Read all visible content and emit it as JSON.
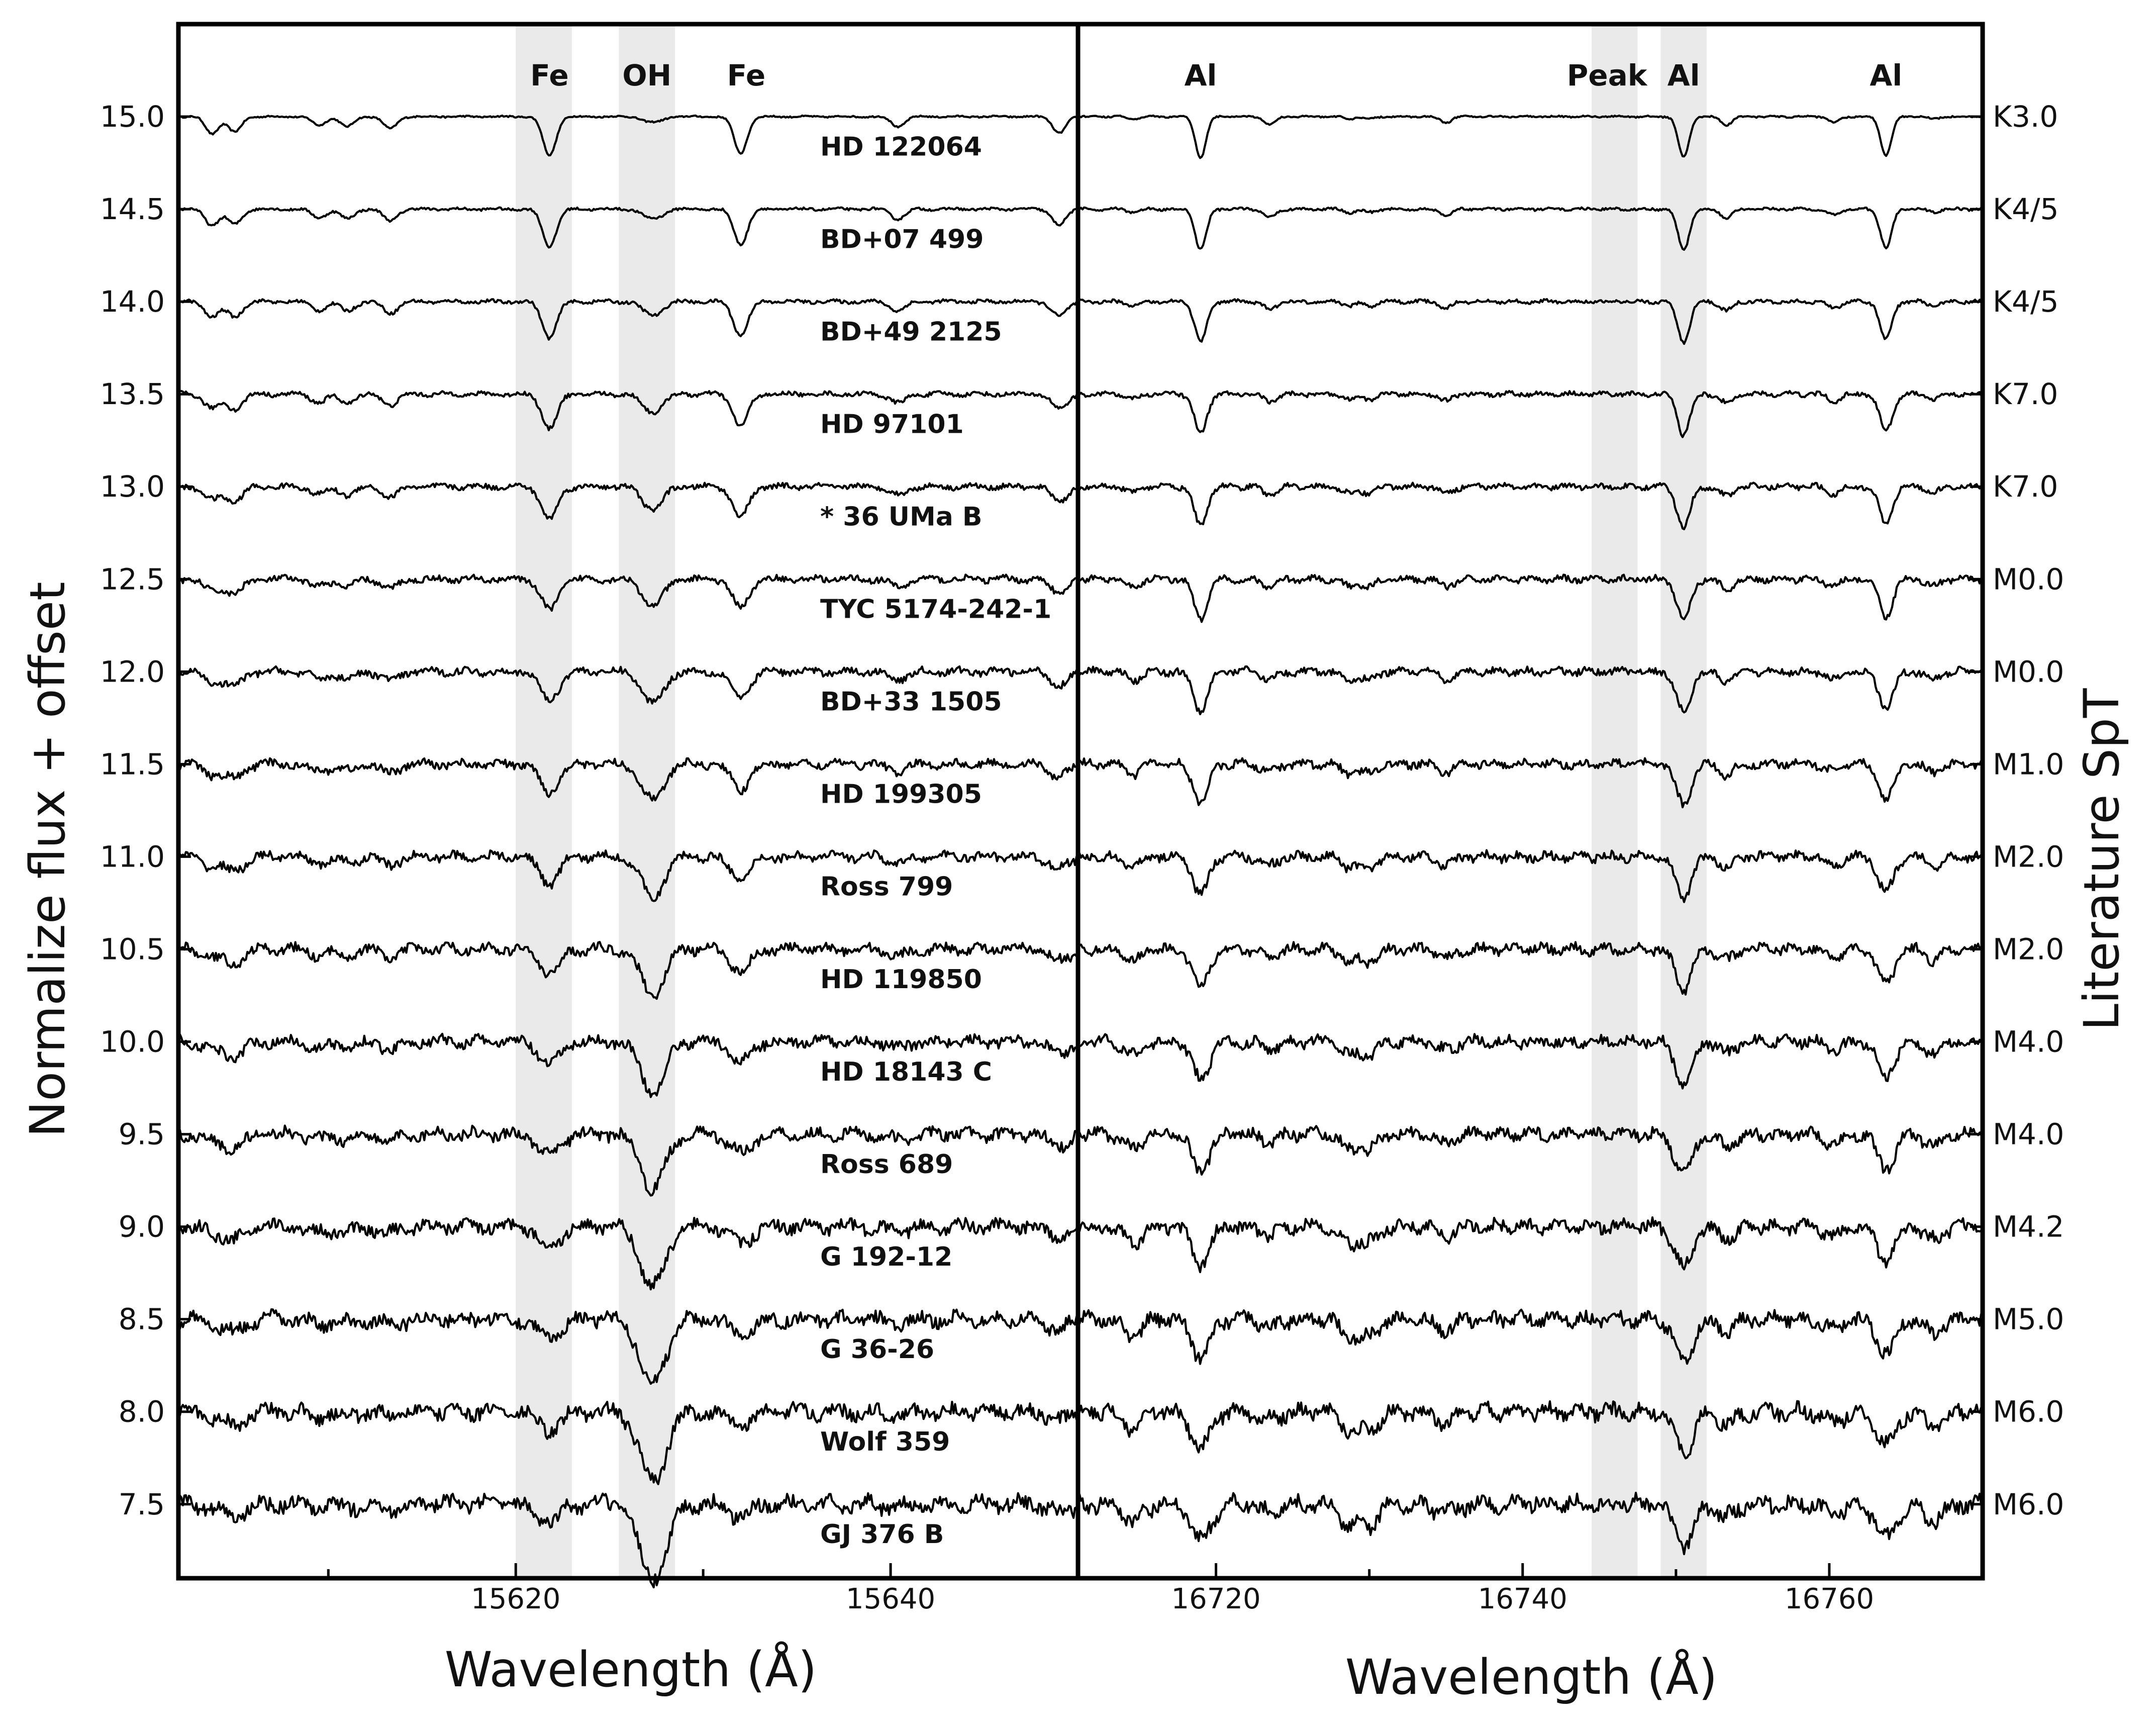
{
  "chart_data": [
    {
      "type": "line",
      "panel": "left",
      "xlabel": "Wavelength (Å)",
      "ylabel": "Normalize flux + offset",
      "xlim": [
        15602,
        15650
      ],
      "ylim": [
        7.1,
        15.5
      ],
      "xticks": [
        15620,
        15640
      ],
      "xtick_labels": [
        "15620",
        "15640"
      ],
      "yticks": [
        7.5,
        8.0,
        8.5,
        9.0,
        9.5,
        10.0,
        10.5,
        11.0,
        11.5,
        12.0,
        12.5,
        13.0,
        13.5,
        14.0,
        14.5,
        15.0
      ],
      "ytick_labels": [
        "7.5",
        "8.0",
        "8.5",
        "9.0",
        "9.5",
        "10.0",
        "10.5",
        "11.0",
        "11.5",
        "12.0",
        "12.5",
        "13.0",
        "13.5",
        "14.0",
        "14.5",
        "15.0"
      ],
      "shaded_regions": [
        {
          "label": "Fe",
          "x": [
            15620.0,
            15623.0
          ],
          "label_x": 15621.8
        },
        {
          "label": "OH",
          "x": [
            15625.5,
            15628.5
          ],
          "label_x": 15627.0
        },
        {
          "label": "Fe",
          "x": null,
          "label_x": 15632.3
        }
      ],
      "absorption_lines_angstrom": [
        15603.8,
        15605.0,
        15609.5,
        15611.0,
        15613.3,
        15621.8,
        15627.0,
        15627.6,
        15632.0,
        15640.4,
        15649.0
      ]
    },
    {
      "type": "line",
      "panel": "right",
      "xlabel": "Wavelength (Å)",
      "ylabel": "Literature SpT",
      "xlim": [
        16711,
        16770
      ],
      "ylim": [
        7.1,
        15.5
      ],
      "xticks": [
        16720,
        16740,
        16760
      ],
      "xtick_labels": [
        "16720",
        "16740",
        "16760"
      ],
      "shaded_regions": [
        {
          "label": "Peak",
          "x": [
            16744.5,
            16747.5
          ],
          "label_x": 16745.5
        },
        {
          "label": "Al",
          "x": [
            16749.0,
            16752.0
          ],
          "label_x": 16750.5
        },
        {
          "label": "Al",
          "x": null,
          "label_x": 16719.0
        },
        {
          "label": "Al",
          "x": null,
          "label_x": 16763.7
        }
      ],
      "absorption_lines_angstrom": [
        16714.6,
        16719.0,
        16723.5,
        16728.7,
        16730.0,
        16735.0,
        16750.5,
        16753.3,
        16760.3,
        16763.7,
        16766.8
      ]
    }
  ],
  "spectra": [
    {
      "name": "HD 122064",
      "spt": "K3.0",
      "offset": 15.0
    },
    {
      "name": "BD+07 499",
      "spt": "K4/5",
      "offset": 14.5
    },
    {
      "name": "BD+49 2125",
      "spt": "K4/5",
      "offset": 14.0
    },
    {
      "name": "HD 97101",
      "spt": "K7.0",
      "offset": 13.5
    },
    {
      "name": "* 36 UMa B",
      "spt": "K7.0",
      "offset": 13.0
    },
    {
      "name": "TYC 5174-242-1",
      "spt": "M0.0",
      "offset": 12.5
    },
    {
      "name": "BD+33 1505",
      "spt": "M0.0",
      "offset": 12.0
    },
    {
      "name": "HD 199305",
      "spt": "M1.0",
      "offset": 11.5
    },
    {
      "name": "Ross 799",
      "spt": "M2.0",
      "offset": 11.0
    },
    {
      "name": "HD 119850",
      "spt": "M2.0",
      "offset": 10.5
    },
    {
      "name": "HD 18143 C",
      "spt": "M4.0",
      "offset": 10.0
    },
    {
      "name": "Ross 689",
      "spt": "M4.0",
      "offset": 9.5
    },
    {
      "name": "G 192-12",
      "spt": "M4.2",
      "offset": 9.0
    },
    {
      "name": "G 36-26",
      "spt": "M5.0",
      "offset": 8.5
    },
    {
      "name": "Wolf 359",
      "spt": "M6.0",
      "offset": 8.0
    },
    {
      "name": "GJ 376 B",
      "spt": "M6.0",
      "offset": 7.5
    }
  ]
}
